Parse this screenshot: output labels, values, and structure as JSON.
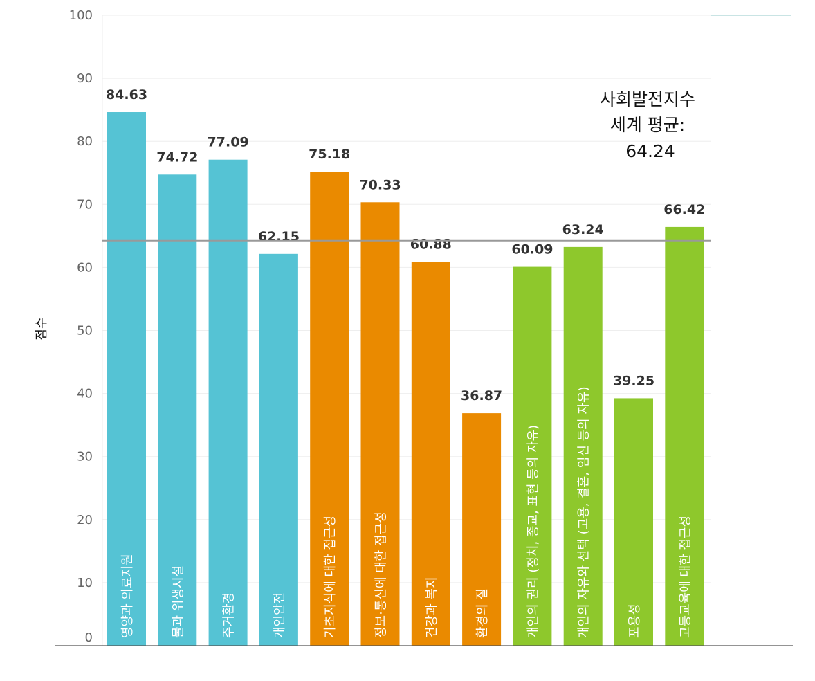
{
  "chart_data": {
    "type": "bar",
    "ylabel": "점수",
    "ylim": [
      0,
      100
    ],
    "yticks": [
      0,
      10,
      20,
      30,
      40,
      50,
      60,
      70,
      80,
      90,
      100
    ],
    "grid": true,
    "reference_line": {
      "value": 64.24,
      "label_lines": [
        "사회발전지수",
        "세계 평균:",
        "64.24"
      ]
    },
    "categories": [
      "영양과 의료지원",
      "물과 위생시설",
      "주거환경",
      "개인안전",
      "기초지식에 대한 접근성",
      "정보·통신에 대한 접근성",
      "건강과 복지",
      "환경의 질",
      "개인의 권리 (정치, 종교, 표현 등의 자유)",
      "개인의 자유와 선택 (고용, 결혼, 임신 등의 자유)",
      "포용성",
      "고등교육에 대한 접근성"
    ],
    "values": [
      84.63,
      74.72,
      77.09,
      62.15,
      75.18,
      70.33,
      60.88,
      36.87,
      60.09,
      63.24,
      39.25,
      66.42
    ],
    "value_labels": [
      "84.63",
      "74.72",
      "77.09",
      "62.15",
      "75.18",
      "70.33",
      "60.88",
      "36.87",
      "60.09",
      "63.24",
      "39.25",
      "66.42"
    ],
    "bar_colors": [
      "#55c3d4",
      "#55c3d4",
      "#55c3d4",
      "#55c3d4",
      "#ea8a00",
      "#ea8a00",
      "#ea8a00",
      "#ea8a00",
      "#8ec82c",
      "#8ec82c",
      "#8ec82c",
      "#8ec82c"
    ],
    "colors": {
      "basic_human_needs": "#55c3d4",
      "foundations_of_wellbeing": "#ea8a00",
      "opportunity": "#8ec82c",
      "reference_line": "#999999",
      "gridline": "#eeeeee"
    }
  }
}
